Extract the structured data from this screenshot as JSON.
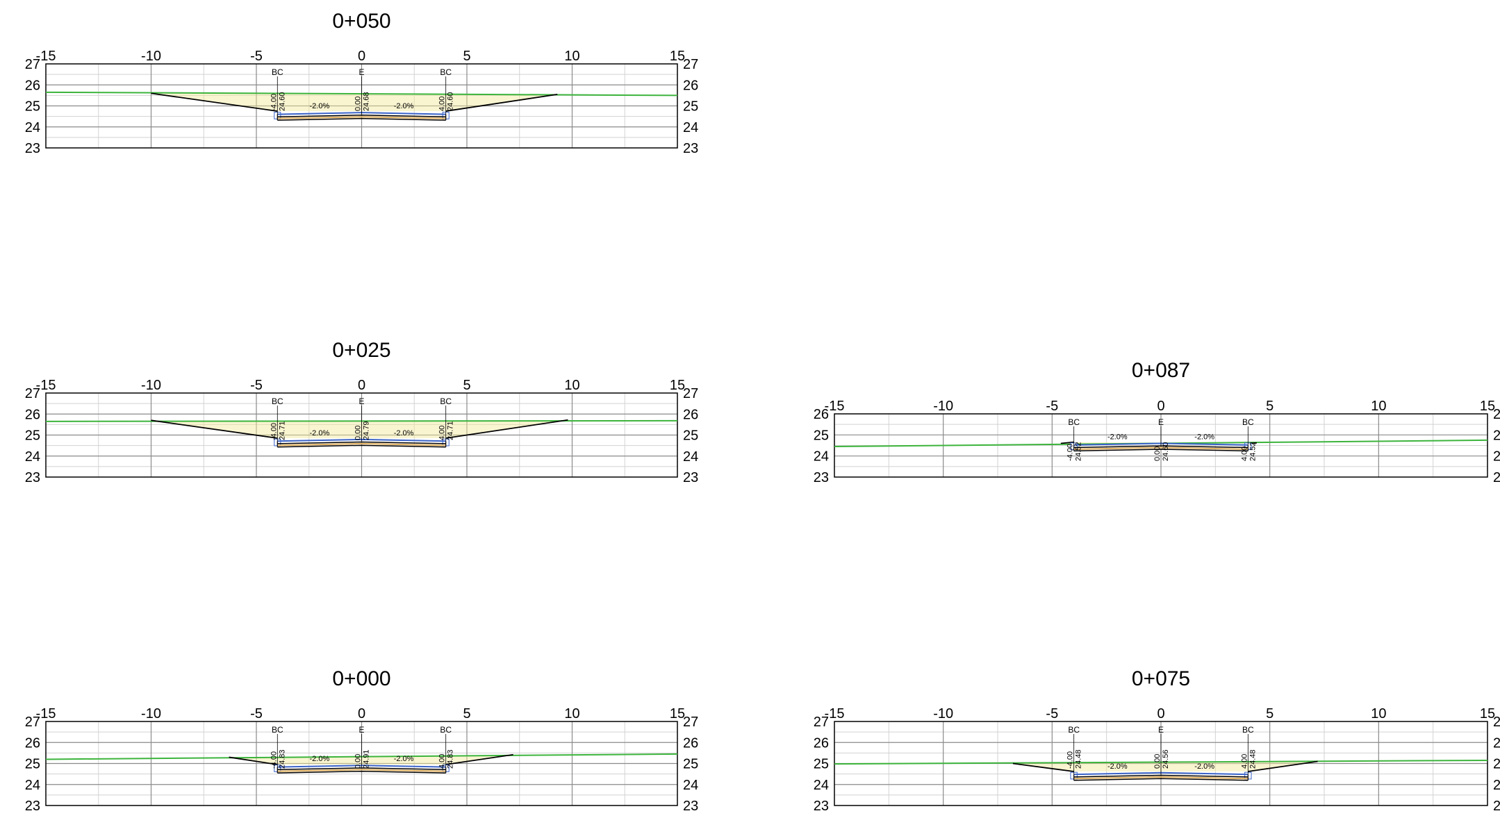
{
  "sheet": {
    "colors": {
      "frame": "#000000",
      "major_grid": "#8a8a8a",
      "minor_grid": "#d2d2d2",
      "existing_ground": "#3cb43c",
      "fill_area": "#f2e89a",
      "design_section": "#000000",
      "pavement_top": "#3a63c8",
      "base_layer": "#e0b060"
    },
    "sections": [
      {
        "station": "0+050",
        "x_ticks": [
          "-15",
          "-10",
          "-5",
          "0",
          "5",
          "10",
          "15"
        ],
        "y_ticks": [
          "27",
          "26",
          "25",
          "24",
          "23"
        ],
        "ylim": [
          23,
          27
        ],
        "xlim": [
          -15,
          15
        ],
        "labels": {
          "left_code": "BC",
          "center_code": "E",
          "right_code": "BC"
        },
        "offsets": {
          "left": "-4.00",
          "center": "0.00",
          "right": "4.00"
        },
        "elevations": {
          "left": "24.60",
          "center": "24.68",
          "right": "24.60"
        },
        "slopes": {
          "left": "-2.0%",
          "right": "-2.0%"
        },
        "ground": [
          [
            -15,
            25.65
          ],
          [
            15,
            25.5
          ]
        ],
        "design": {
          "left_daylight": [
            -10,
            25.6
          ],
          "right_daylight": [
            9.3,
            25.55
          ],
          "left_edge": [
            -4.0,
            24.75
          ],
          "right_edge": [
            4.0,
            24.75
          ],
          "center_elev": 24.68,
          "edge_elev": 24.6
        }
      },
      {
        "station": "0+025",
        "x_ticks": [
          "-15",
          "-10",
          "-5",
          "0",
          "5",
          "10",
          "15"
        ],
        "y_ticks": [
          "27",
          "26",
          "25",
          "24",
          "23"
        ],
        "ylim": [
          23,
          27
        ],
        "xlim": [
          -15,
          15
        ],
        "labels": {
          "left_code": "BC",
          "center_code": "E",
          "right_code": "BC"
        },
        "offsets": {
          "left": "-4.00",
          "center": "0.00",
          "right": "4.00"
        },
        "elevations": {
          "left": "24.71",
          "center": "24.79",
          "right": "24.71"
        },
        "slopes": {
          "left": "-2.0%",
          "right": "-2.0%"
        },
        "ground": [
          [
            -15,
            25.65
          ],
          [
            15,
            25.68
          ]
        ],
        "design": {
          "left_daylight": [
            -10,
            25.7
          ],
          "right_daylight": [
            9.8,
            25.72
          ],
          "left_edge": [
            -4.0,
            24.85
          ],
          "right_edge": [
            4.0,
            24.85
          ],
          "center_elev": 24.79,
          "edge_elev": 24.71
        }
      },
      {
        "station": "0+000",
        "x_ticks": [
          "-15",
          "-10",
          "-5",
          "0",
          "5",
          "10",
          "15"
        ],
        "y_ticks": [
          "27",
          "26",
          "25",
          "24",
          "23"
        ],
        "ylim": [
          23,
          27
        ],
        "xlim": [
          -15,
          15
        ],
        "labels": {
          "left_code": "BC",
          "center_code": "E",
          "right_code": "BC"
        },
        "offsets": {
          "left": "-4.00",
          "center": "0.00",
          "right": "4.00"
        },
        "elevations": {
          "left": "24.83",
          "center": "24.91",
          "right": "24.83"
        },
        "slopes": {
          "left": "-2.0%",
          "right": "-2.0%"
        },
        "ground": [
          [
            -15,
            25.2
          ],
          [
            15,
            25.45
          ]
        ],
        "design": {
          "left_daylight": [
            -6.3,
            25.3
          ],
          "right_daylight": [
            7.2,
            25.42
          ],
          "left_edge": [
            -4.0,
            24.95
          ],
          "right_edge": [
            4.0,
            24.95
          ],
          "center_elev": 24.91,
          "edge_elev": 24.83
        }
      },
      {
        "station": "0+087",
        "x_ticks": [
          "-15",
          "-10",
          "-5",
          "0",
          "5",
          "10",
          "15"
        ],
        "y_ticks": [
          "26",
          "25",
          "24",
          "23"
        ],
        "ylim": [
          23,
          26
        ],
        "xlim": [
          -15,
          15
        ],
        "labels": {
          "left_code": "BC",
          "center_code": "E",
          "right_code": "BC"
        },
        "offsets": {
          "left": "-4.00",
          "center": "0.00",
          "right": "4.00"
        },
        "elevations": {
          "left": "24.52",
          "center": "24.60",
          "right": "24.52"
        },
        "slopes": {
          "left": "-2.0%",
          "right": "-2.0%"
        },
        "ground": [
          [
            -15,
            24.45
          ],
          [
            15,
            24.75
          ]
        ],
        "design": {
          "left_daylight": [
            -4.6,
            24.6
          ],
          "right_daylight": [
            4.4,
            24.62
          ],
          "left_edge": [
            -4.0,
            24.66
          ],
          "right_edge": [
            4.0,
            24.6
          ],
          "center_elev": 24.6,
          "edge_elev": 24.52
        }
      },
      {
        "station": "0+075",
        "x_ticks": [
          "-15",
          "-10",
          "-5",
          "0",
          "5",
          "10",
          "15"
        ],
        "y_ticks": [
          "27",
          "26",
          "25",
          "24",
          "23"
        ],
        "ylim": [
          23,
          27
        ],
        "xlim": [
          -15,
          15
        ],
        "labels": {
          "left_code": "BC",
          "center_code": "E",
          "right_code": "BC"
        },
        "offsets": {
          "left": "-4.00",
          "center": "0.00",
          "right": "4.00"
        },
        "elevations": {
          "left": "24.48",
          "center": "24.56",
          "right": "24.48"
        },
        "slopes": {
          "left": "-2.0%",
          "right": "-2.0%"
        },
        "ground": [
          [
            -15,
            24.98
          ],
          [
            15,
            25.15
          ]
        ],
        "design": {
          "left_daylight": [
            -6.8,
            25.0
          ],
          "right_daylight": [
            7.2,
            25.1
          ],
          "left_edge": [
            -4.0,
            24.62
          ],
          "right_edge": [
            4.0,
            24.62
          ],
          "center_elev": 24.56,
          "edge_elev": 24.48
        }
      }
    ]
  }
}
